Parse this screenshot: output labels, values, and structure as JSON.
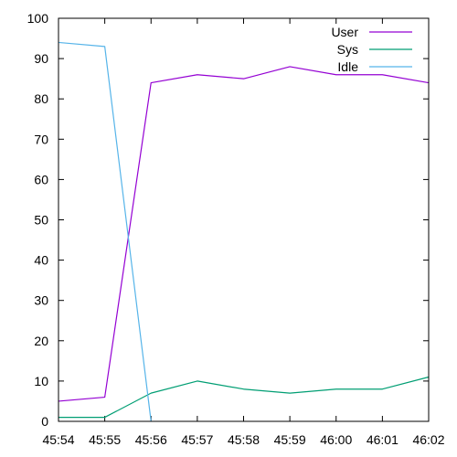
{
  "chart_data": {
    "type": "line",
    "title": "",
    "xlabel": "",
    "ylabel": "",
    "x": [
      "45:54",
      "45:55",
      "45:56",
      "45:57",
      "45:58",
      "45:59",
      "46:00",
      "46:01",
      "46:02"
    ],
    "ylim": [
      0,
      100
    ],
    "yticks": [
      0,
      10,
      20,
      30,
      40,
      50,
      60,
      70,
      80,
      90,
      100
    ],
    "grid": false,
    "legend_position": "top-right",
    "series": [
      {
        "name": "User",
        "color": "#9400d3",
        "values": [
          5,
          6,
          84,
          86,
          85,
          88,
          86,
          86,
          84
        ]
      },
      {
        "name": "Sys",
        "color": "#009e73",
        "values": [
          1,
          1,
          7,
          10,
          8,
          7,
          8,
          8,
          11
        ]
      },
      {
        "name": "Idle",
        "color": "#56b4e9",
        "values": [
          94,
          93,
          0,
          null,
          null,
          null,
          null,
          null,
          null
        ]
      }
    ]
  }
}
